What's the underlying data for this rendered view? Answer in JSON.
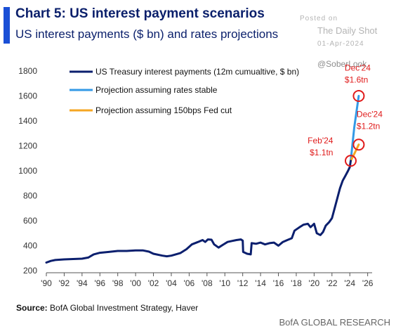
{
  "header": {
    "title": "Chart 5: US interest payment scenarios",
    "subtitle": "US interest payments ($ bn) and rates projections"
  },
  "watermark": {
    "posted": "Posted on",
    "site": "The Daily Shot",
    "date": "01-Apr-2024",
    "handle": "@SoberLook"
  },
  "footer": {
    "source_label": "Source:",
    "source_text": " BofA Global Investment Strategy, Haver",
    "brand": "BofA GLOBAL RESEARCH"
  },
  "chart_data": {
    "type": "line",
    "title": "Chart 5: US interest payment scenarios",
    "subtitle": "US interest payments ($ bn) and rates projections",
    "xlabel": "",
    "ylabel": "",
    "xlim": [
      1990,
      2026.5
    ],
    "ylim": [
      200,
      1800
    ],
    "y_ticks": [
      200,
      400,
      600,
      800,
      1000,
      1200,
      1400,
      1600,
      1800
    ],
    "x_ticks": [
      1990,
      1992,
      1994,
      1996,
      1998,
      2000,
      2002,
      2004,
      2006,
      2008,
      2010,
      2012,
      2014,
      2016,
      2018,
      2020,
      2022,
      2024,
      2026
    ],
    "x_tick_labels": [
      "'90",
      "'92",
      "'94",
      "'96",
      "'98",
      "'00",
      "'02",
      "'04",
      "'06",
      "'08",
      "'10",
      "'12",
      "'14",
      "'16",
      "'18",
      "'20",
      "'22",
      "'24",
      "'26"
    ],
    "grid": false,
    "legend_position": "top-left",
    "series": [
      {
        "name": "US Treasury interest payments (12m cumualtive, $ bn)",
        "color": "#0b1f6e",
        "points": [
          [
            1990,
            265
          ],
          [
            1990.5,
            278
          ],
          [
            1991,
            285
          ],
          [
            1992,
            290
          ],
          [
            1993,
            293
          ],
          [
            1994,
            296
          ],
          [
            1994.7,
            305
          ],
          [
            1995.3,
            330
          ],
          [
            1996,
            343
          ],
          [
            1997,
            350
          ],
          [
            1998,
            358
          ],
          [
            1999,
            358
          ],
          [
            2000,
            362
          ],
          [
            2000.8,
            362
          ],
          [
            2001.5,
            352
          ],
          [
            2002,
            335
          ],
          [
            2003,
            320
          ],
          [
            2003.5,
            315
          ],
          [
            2004,
            320
          ],
          [
            2005,
            340
          ],
          [
            2005.7,
            372
          ],
          [
            2006.3,
            410
          ],
          [
            2007,
            430
          ],
          [
            2007.5,
            445
          ],
          [
            2007.8,
            430
          ],
          [
            2008.1,
            450
          ],
          [
            2008.5,
            448
          ],
          [
            2008.8,
            410
          ],
          [
            2009.3,
            385
          ],
          [
            2009.8,
            408
          ],
          [
            2010.3,
            430
          ],
          [
            2010.8,
            438
          ],
          [
            2011.3,
            445
          ],
          [
            2011.8,
            450
          ],
          [
            2012,
            440
          ],
          [
            2012.05,
            350
          ],
          [
            2012.5,
            335
          ],
          [
            2012.9,
            330
          ],
          [
            2013.0,
            420
          ],
          [
            2013.5,
            415
          ],
          [
            2014,
            425
          ],
          [
            2014.5,
            410
          ],
          [
            2015,
            420
          ],
          [
            2015.5,
            425
          ],
          [
            2016,
            400
          ],
          [
            2016.5,
            430
          ],
          [
            2017,
            445
          ],
          [
            2017.5,
            460
          ],
          [
            2017.8,
            520
          ],
          [
            2018.3,
            545
          ],
          [
            2018.8,
            568
          ],
          [
            2019.3,
            575
          ],
          [
            2019.6,
            548
          ],
          [
            2020.0,
            575
          ],
          [
            2020.3,
            500
          ],
          [
            2020.7,
            485
          ],
          [
            2021.0,
            510
          ],
          [
            2021.3,
            560
          ],
          [
            2021.7,
            590
          ],
          [
            2022.0,
            620
          ],
          [
            2022.3,
            700
          ],
          [
            2022.6,
            780
          ],
          [
            2022.9,
            860
          ],
          [
            2023.2,
            920
          ],
          [
            2023.5,
            960
          ],
          [
            2023.8,
            1000
          ],
          [
            2024.0,
            1030
          ],
          [
            2024.1,
            1080
          ]
        ]
      },
      {
        "name": "Projection assuming rates stable",
        "color": "#3399e6",
        "points": [
          [
            2024.1,
            1080
          ],
          [
            2024.5,
            1350
          ],
          [
            2025.0,
            1600
          ]
        ]
      },
      {
        "name": "Projection assuming 150bps Fed cut",
        "color": "#f5a623",
        "points": [
          [
            2024.1,
            1080
          ],
          [
            2024.6,
            1150
          ],
          [
            2025.0,
            1210
          ]
        ]
      }
    ],
    "annotations": [
      {
        "lines": [
          "Dec'24",
          "$1.6tn"
        ],
        "x": 2025.0,
        "y": 1600,
        "color": "#e01b1b"
      },
      {
        "lines": [
          "Dec'24",
          "$1.2tn"
        ],
        "x": 2025.0,
        "y": 1210,
        "color": "#e01b1b"
      },
      {
        "lines": [
          "Feb'24",
          "$1.1tn"
        ],
        "x": 2024.1,
        "y": 1080,
        "color": "#e01b1b"
      }
    ]
  }
}
